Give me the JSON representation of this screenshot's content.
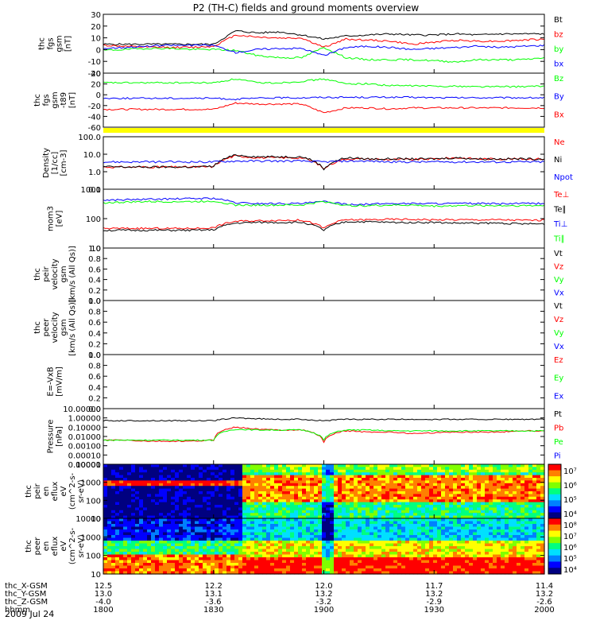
{
  "title": "P2 (TH-C) fields and ground moments overview",
  "date": "2009 Jul 24",
  "colors": {
    "black": "#000000",
    "red": "#ff0000",
    "green": "#00ff00",
    "blue": "#0000ff",
    "yellow": "#ffff00"
  },
  "chart_data": [
    {
      "type": "line",
      "ylabel_lines": [
        "thc",
        "fgs",
        "gsm",
        "[nT]"
      ],
      "yticks": [
        "30",
        "20",
        "10",
        "0",
        "-10",
        "-20"
      ],
      "ylim": [
        -25,
        32
      ],
      "series": [
        {
          "name": "Bt",
          "color": "black",
          "values": [
            3,
            3,
            3,
            3,
            3,
            3,
            16,
            14,
            15,
            12,
            8,
            11,
            12,
            13,
            12,
            12,
            13,
            12,
            13,
            13,
            13
          ]
        },
        {
          "name": "bz",
          "color": "red",
          "values": [
            2,
            1,
            0,
            0,
            0,
            1,
            12,
            10,
            9,
            9,
            0,
            8,
            7,
            6,
            3,
            5,
            7,
            6,
            6,
            7,
            8
          ]
        },
        {
          "name": "by",
          "color": "green",
          "values": [
            -3,
            -2,
            -1,
            -1,
            -2,
            -2,
            -3,
            -8,
            -10,
            -10,
            0,
            -10,
            -12,
            -12,
            -12,
            -13,
            -14,
            -12,
            -12,
            -12,
            -10
          ]
        },
        {
          "name": "bx",
          "color": "blue",
          "values": [
            -1,
            0,
            1,
            2,
            2,
            2,
            -5,
            -2,
            -1,
            -1,
            -8,
            0,
            1,
            0,
            -2,
            -1,
            0,
            1,
            0,
            1,
            2
          ]
        }
      ]
    },
    {
      "type": "line",
      "ylabel_lines": [
        "thc",
        "fgs",
        "gsm",
        "-t89",
        "[nT]"
      ],
      "yticks": [
        "40",
        "20",
        "0",
        "-20",
        "-40",
        "-60"
      ],
      "ylim": [
        -70,
        42
      ],
      "series": [
        {
          "name": "Bz",
          "color": "green",
          "values": [
            22,
            22,
            22,
            22,
            22,
            22,
            30,
            22,
            22,
            25,
            30,
            20,
            20,
            16,
            16,
            15,
            15,
            14,
            14,
            14,
            15
          ]
        },
        {
          "name": "By",
          "color": "blue",
          "values": [
            -10,
            -10,
            -10,
            -10,
            -10,
            -10,
            -12,
            -10,
            -9,
            -9,
            -8,
            -8,
            -8,
            -8,
            -8,
            -9,
            -9,
            -9,
            -9,
            -9,
            -9
          ]
        },
        {
          "name": "Bx",
          "color": "red",
          "values": [
            -33,
            -33,
            -33,
            -33,
            -33,
            -33,
            -20,
            -22,
            -22,
            -22,
            -40,
            -30,
            -30,
            -32,
            -30,
            -30,
            -30,
            -30,
            -30,
            -30,
            -30
          ]
        }
      ]
    },
    {
      "type": "line",
      "scale": "log",
      "ylabel_lines": [
        "Density",
        "[1/cc]",
        "[cm-3]"
      ],
      "yticks": [
        "100.0",
        "10.0",
        "1.0",
        "0.1"
      ],
      "ylim": [
        0.1,
        120
      ],
      "series": [
        {
          "name": "Ne",
          "color": "red",
          "values": [
            2,
            2,
            2,
            2,
            2,
            2.1,
            9,
            7,
            7,
            7,
            1.5,
            6,
            6,
            5.5,
            5.5,
            6,
            7,
            6,
            6,
            6,
            6
          ]
        },
        {
          "name": "Ni",
          "color": "black",
          "values": [
            2.1,
            2,
            2,
            2,
            2,
            2.2,
            10,
            8,
            8,
            8,
            1.5,
            7,
            6,
            6,
            6,
            6,
            7,
            6,
            6,
            6,
            6
          ]
        },
        {
          "name": "Npot",
          "color": "blue",
          "values": [
            4,
            4,
            4,
            4,
            4,
            4,
            4.5,
            4.5,
            4.5,
            4.5,
            4,
            4.5,
            4.5,
            4,
            4,
            4,
            4,
            4,
            4,
            4,
            4
          ]
        }
      ]
    },
    {
      "type": "line",
      "scale": "log",
      "ylabel_lines": [
        "mom3",
        "[eV]"
      ],
      "yticks": [
        "1000",
        "100",
        "10"
      ],
      "ylim": [
        1,
        8000
      ],
      "series": [
        {
          "name": "Te⊥",
          "color": "red",
          "values": [
            20,
            20,
            20,
            20,
            20,
            22,
            60,
            65,
            70,
            70,
            20,
            75,
            75,
            80,
            80,
            75,
            75,
            75,
            75,
            70,
            70
          ]
        },
        {
          "name": "Te∥",
          "color": "black",
          "values": [
            15,
            15,
            15,
            15,
            15,
            16,
            45,
            50,
            50,
            50,
            15,
            55,
            55,
            50,
            50,
            50,
            45,
            45,
            45,
            40,
            40
          ]
        },
        {
          "name": "Ti⊥",
          "color": "blue",
          "values": [
            1500,
            1600,
            1700,
            1800,
            1900,
            2000,
            1000,
            900,
            900,
            900,
            1200,
            800,
            800,
            900,
            900,
            900,
            900,
            900,
            850,
            900,
            900
          ]
        },
        {
          "name": "Ti∥",
          "color": "green",
          "values": [
            1000,
            1100,
            1200,
            1200,
            1200,
            1300,
            700,
            700,
            700,
            700,
            1200,
            650,
            650,
            700,
            700,
            600,
            650,
            650,
            650,
            650,
            650
          ]
        }
      ]
    },
    {
      "type": "line",
      "ylabel_lines": [
        "thc",
        "peir",
        "velocity",
        "gsm",
        "[km/s (All Qs)]"
      ],
      "yticks": [
        "1.0",
        "0.8",
        "0.6",
        "0.4",
        "0.2",
        "0.0"
      ],
      "ylim": [
        0,
        1
      ],
      "series": [
        {
          "name": "Vt",
          "color": "black",
          "values": []
        },
        {
          "name": "Vz",
          "color": "red",
          "values": []
        },
        {
          "name": "Vy",
          "color": "green",
          "values": []
        },
        {
          "name": "Vx",
          "color": "blue",
          "values": []
        }
      ]
    },
    {
      "type": "line",
      "ylabel_lines": [
        "thc",
        "peer",
        "velocity",
        "gsm",
        "[km/s (All Qs)]"
      ],
      "yticks": [
        "1.0",
        "0.8",
        "0.6",
        "0.4",
        "0.2",
        "0.0"
      ],
      "ylim": [
        0,
        1
      ],
      "series": [
        {
          "name": "Vt",
          "color": "black",
          "values": []
        },
        {
          "name": "Vz",
          "color": "red",
          "values": []
        },
        {
          "name": "Vy",
          "color": "green",
          "values": []
        },
        {
          "name": "Vx",
          "color": "blue",
          "values": []
        }
      ]
    },
    {
      "type": "line",
      "ylabel_lines": [
        "E=-VxB",
        "[mV/m]"
      ],
      "yticks": [
        "1.0",
        "0.8",
        "0.6",
        "0.4",
        "0.2",
        "0.0"
      ],
      "ylim": [
        0,
        1
      ],
      "series": [
        {
          "name": "Ez",
          "color": "red",
          "values": []
        },
        {
          "name": "Ey",
          "color": "green",
          "values": []
        },
        {
          "name": "Ex",
          "color": "blue",
          "values": []
        }
      ]
    },
    {
      "type": "line",
      "scale": "log",
      "ylabel_lines": [
        "Pressure",
        "[nPa]"
      ],
      "yticks": [
        "10.00000",
        "1.00000",
        "0.10000",
        "0.01000",
        "0.00100",
        "0.00010",
        "0.00001"
      ],
      "ylim": [
        1e-05,
        10
      ],
      "series": [
        {
          "name": "Pt",
          "color": "black",
          "values": [
            0.5,
            0.5,
            0.5,
            0.5,
            0.5,
            0.5,
            1,
            0.8,
            0.7,
            0.7,
            0.5,
            0.7,
            0.7,
            0.7,
            0.7,
            0.7,
            0.7,
            0.7,
            0.7,
            0.7,
            0.7
          ]
        },
        {
          "name": "Pb",
          "color": "red",
          "values": [
            0.004,
            0.004,
            0.003,
            0.003,
            0.003,
            0.004,
            0.1,
            0.06,
            0.05,
            0.05,
            0.002,
            0.04,
            0.03,
            0.03,
            0.02,
            0.025,
            0.03,
            0.03,
            0.03,
            0.04,
            0.04
          ]
        },
        {
          "name": "Pe",
          "color": "green",
          "values": [
            0.004,
            0.004,
            0.004,
            0.004,
            0.004,
            0.004,
            0.06,
            0.05,
            0.05,
            0.05,
            0.004,
            0.05,
            0.05,
            0.04,
            0.04,
            0.04,
            0.04,
            0.04,
            0.04,
            0.04,
            0.04
          ]
        },
        {
          "name": "Pi",
          "color": "blue",
          "values": []
        }
      ]
    },
    {
      "type": "heatmap",
      "ylabel_lines": [
        "thc",
        "peir",
        "en",
        "eflux",
        "eV",
        "(cm^2-s-",
        "sr-eV)"
      ],
      "yticks": [
        "10000",
        "1000",
        "100",
        "10"
      ],
      "colorbar_ticks": [
        "10⁷",
        "10⁶",
        "10⁵",
        "10⁴"
      ]
    },
    {
      "type": "heatmap",
      "ylabel_lines": [
        "thc",
        "peer",
        "en",
        "eflux",
        "eV",
        "(cm^2-s-",
        "sr-eV)"
      ],
      "yticks": [
        "10000",
        "1000",
        "100",
        "10"
      ],
      "colorbar_ticks": [
        "10⁸",
        "10⁷",
        "10⁶",
        "10⁵",
        "10⁴"
      ]
    }
  ],
  "x_axis": {
    "range": [
      "1800",
      "2000"
    ],
    "rows": [
      {
        "label": "thc_X-GSM",
        "values": [
          "12.5",
          "12.2",
          "12.0",
          "11.7",
          "11.4"
        ]
      },
      {
        "label": "thc_Y-GSM",
        "values": [
          "13.0",
          "13.1",
          "13.2",
          "13.2",
          "13.2"
        ]
      },
      {
        "label": "thc_Z-GSM",
        "values": [
          "-4.0",
          "-3.6",
          "-3.2",
          "-2.9",
          "-2.6"
        ]
      },
      {
        "label": "hhmm",
        "values": [
          "1800",
          "1830",
          "1900",
          "1930",
          "2000"
        ]
      }
    ]
  }
}
